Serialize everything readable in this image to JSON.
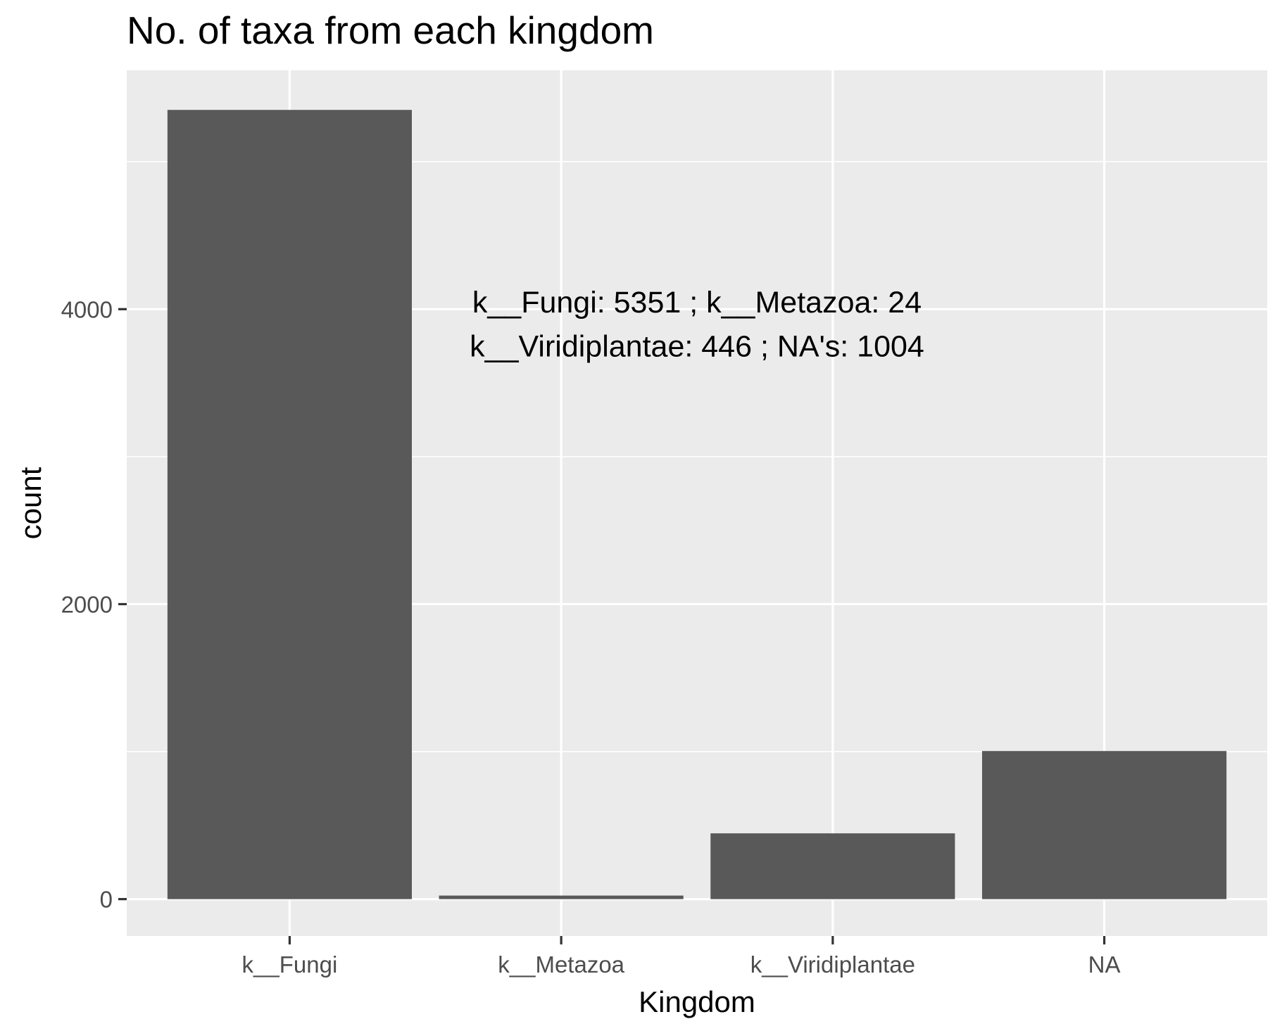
{
  "chart_data": {
    "type": "bar",
    "title": "No. of taxa from each kingdom",
    "xlabel": "Kingdom",
    "ylabel": "count",
    "categories": [
      "k__Fungi",
      "k__Metazoa",
      "k__Viridiplantae",
      "NA"
    ],
    "values": [
      5351,
      24,
      446,
      1004
    ],
    "ylim": [
      -250,
      5619
    ],
    "yticks": [
      0,
      2000,
      4000
    ],
    "yticks_minor": [
      1000,
      3000,
      5000
    ],
    "ytick_labels": [
      "0",
      "2000",
      "4000"
    ],
    "grid": true,
    "legend": "none",
    "annotation": {
      "line1": "k__Fungi: 5351 ; k__Metazoa: 24",
      "line2": "k__Viridiplantae: 446 ; NA's: 1004",
      "x_category_position": 2.5,
      "y_value_line1": 4050,
      "y_value_line2": 3750
    },
    "colors": {
      "panel_background": "#ebebeb",
      "grid_line": "#ffffff",
      "bar_fill": "#595959",
      "tick_mark": "#333333",
      "tick_label": "#4d4d4d",
      "text": "#000000"
    }
  }
}
